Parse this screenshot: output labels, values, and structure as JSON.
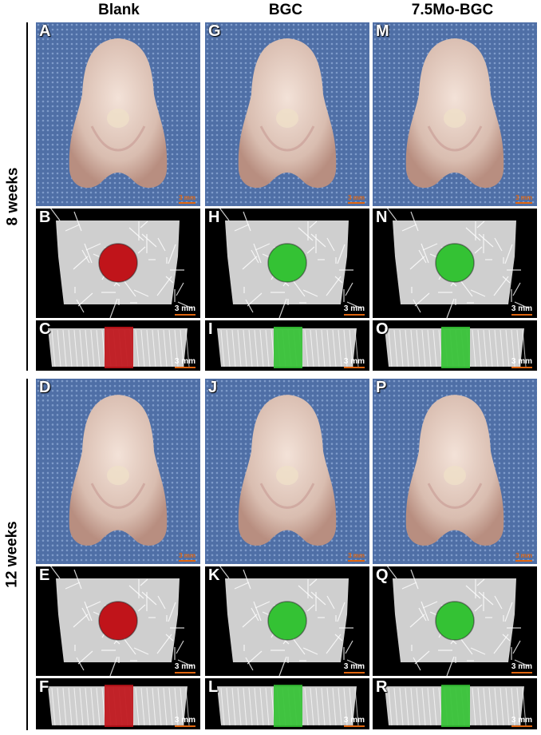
{
  "columns": [
    "Blank",
    "BGC",
    "7.5Mo-BGC"
  ],
  "groups": [
    "8 weeks",
    "12 weeks"
  ],
  "scale_photo": "3 mm",
  "scale_ct": "3 mm",
  "colors": {
    "photo_bg": "#4f6fa6",
    "tissue": "#d9bdb0",
    "defect": "#c0141a",
    "implant": "#34c234",
    "bone": "#e8e8e8"
  },
  "panels": [
    {
      "id": "A",
      "type": "photo"
    },
    {
      "id": "G",
      "type": "photo"
    },
    {
      "id": "M",
      "type": "photo"
    },
    {
      "id": "B",
      "type": "ct-top",
      "fill": "red"
    },
    {
      "id": "H",
      "type": "ct-top",
      "fill": "green"
    },
    {
      "id": "N",
      "type": "ct-top",
      "fill": "green"
    },
    {
      "id": "C",
      "type": "ct-side",
      "fill": "red"
    },
    {
      "id": "I",
      "type": "ct-side",
      "fill": "green"
    },
    {
      "id": "O",
      "type": "ct-side",
      "fill": "green"
    },
    {
      "id": "D",
      "type": "photo"
    },
    {
      "id": "J",
      "type": "photo"
    },
    {
      "id": "P",
      "type": "photo"
    },
    {
      "id": "E",
      "type": "ct-top",
      "fill": "red"
    },
    {
      "id": "K",
      "type": "ct-top",
      "fill": "green"
    },
    {
      "id": "Q",
      "type": "ct-top",
      "fill": "green"
    },
    {
      "id": "F",
      "type": "ct-side",
      "fill": "red"
    },
    {
      "id": "L",
      "type": "ct-side",
      "fill": "green"
    },
    {
      "id": "R",
      "type": "ct-side",
      "fill": "green"
    }
  ]
}
